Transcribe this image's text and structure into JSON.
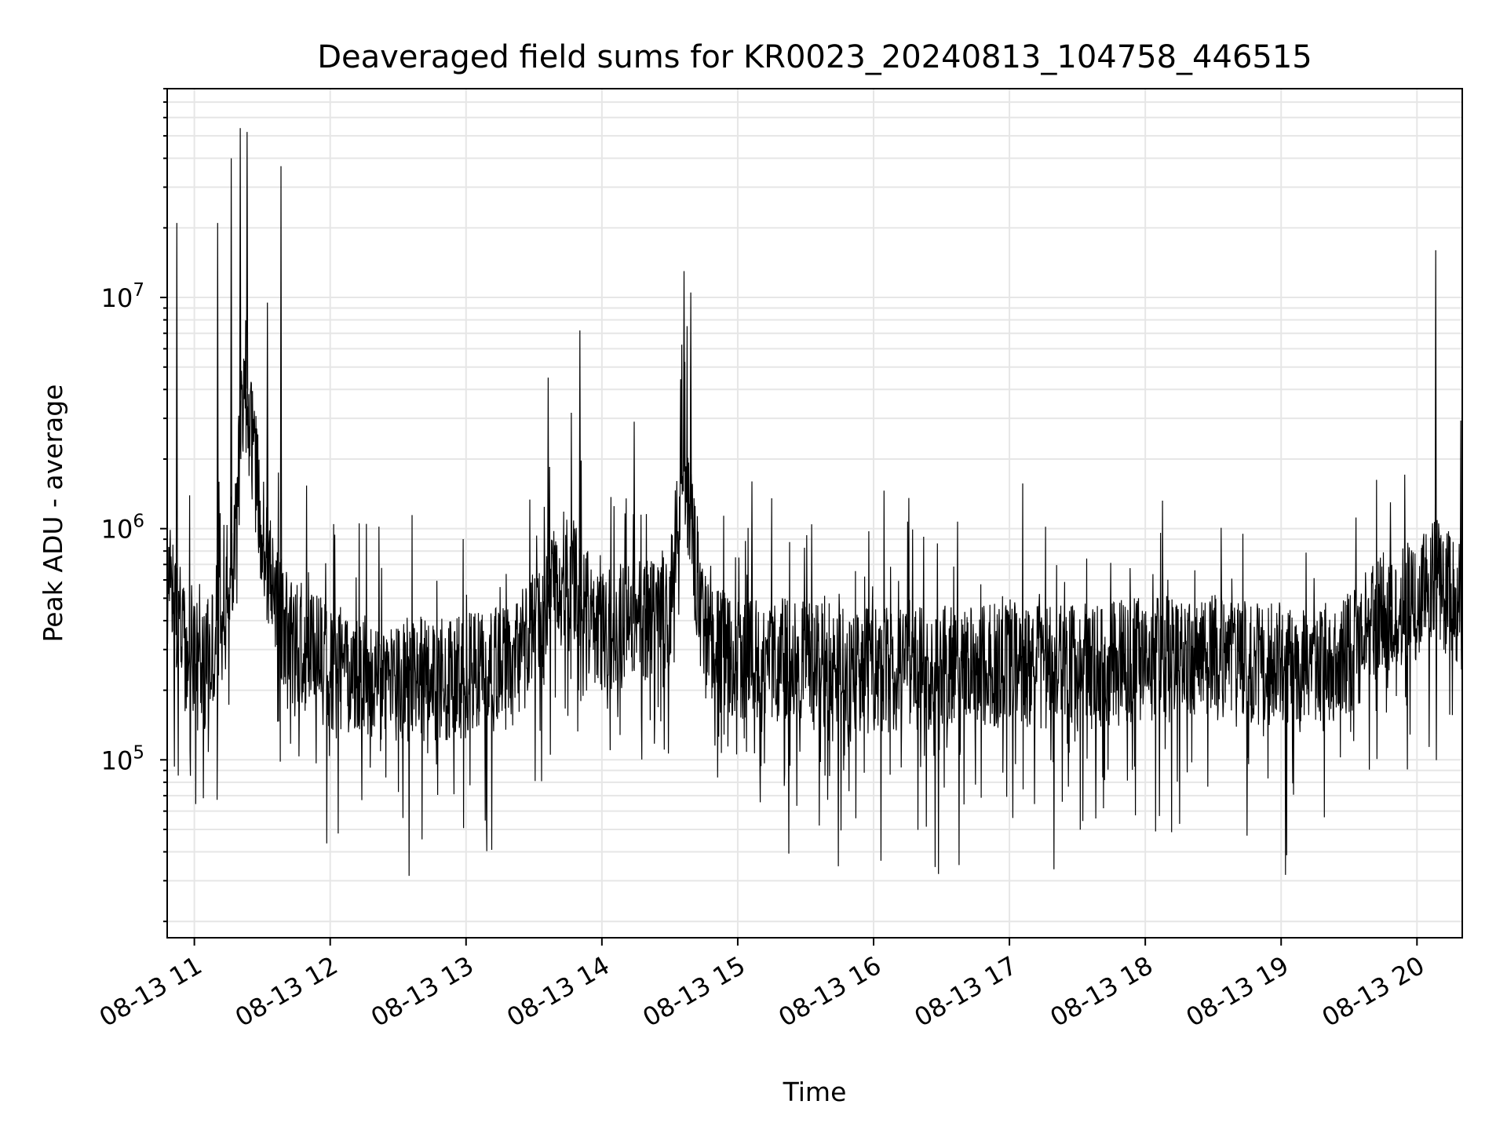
{
  "chart_data": {
    "type": "line",
    "title": "Deaveraged field sums for KR0023_20240813_104758_446515",
    "xlabel": "Time",
    "ylabel": "Peak ADU - average",
    "y_scale": "log",
    "ylim": [
      17000,
      80000000
    ],
    "xlim": [
      "2024-08-13 10:48",
      "2024-08-13 20:20"
    ],
    "x_tick_labels": [
      "08-13 11",
      "08-13 12",
      "08-13 13",
      "08-13 14",
      "08-13 15",
      "08-13 16",
      "08-13 17",
      "08-13 18",
      "08-13 19",
      "08-13 20"
    ],
    "x_tick_times": [
      "2024-08-13 11:00",
      "2024-08-13 12:00",
      "2024-08-13 13:00",
      "2024-08-13 14:00",
      "2024-08-13 15:00",
      "2024-08-13 16:00",
      "2024-08-13 17:00",
      "2024-08-13 18:00",
      "2024-08-13 19:00",
      "2024-08-13 20:00"
    ],
    "y_ticks": [
      {
        "value": 100000,
        "base": "10",
        "exp": "5"
      },
      {
        "value": 1000000,
        "base": "10",
        "exp": "6"
      },
      {
        "value": 10000000,
        "base": "10",
        "exp": "7"
      }
    ],
    "grid": true,
    "line_color": "#000000",
    "grid_color": "#e6e6e6",
    "series": [
      {
        "x": [
          "2024-08-13 10:48",
          "2024-08-13 10:55",
          "2024-08-13 11:00",
          "2024-08-13 11:05",
          "2024-08-13 11:10",
          "2024-08-13 11:15",
          "2024-08-13 11:18",
          "2024-08-13 11:22",
          "2024-08-13 11:30",
          "2024-08-13 11:40",
          "2024-08-13 12:00",
          "2024-08-13 12:30",
          "2024-08-13 13:00",
          "2024-08-13 13:20",
          "2024-08-13 13:30",
          "2024-08-13 13:38",
          "2024-08-13 13:45",
          "2024-08-13 13:52",
          "2024-08-13 14:00",
          "2024-08-13 14:10",
          "2024-08-13 14:20",
          "2024-08-13 14:30",
          "2024-08-13 14:36",
          "2024-08-13 14:40",
          "2024-08-13 14:45",
          "2024-08-13 14:50",
          "2024-08-13 15:00",
          "2024-08-13 15:30",
          "2024-08-13 16:00",
          "2024-08-13 16:30",
          "2024-08-13 17:00",
          "2024-08-13 17:30",
          "2024-08-13 18:00",
          "2024-08-13 18:30",
          "2024-08-13 19:00",
          "2024-08-13 19:30",
          "2024-08-13 19:45",
          "2024-08-13 20:00",
          "2024-08-13 20:08",
          "2024-08-13 20:20"
        ],
        "y": [
          600000,
          350000,
          300000,
          250000,
          400000,
          700000,
          800000,
          5000000,
          900000,
          350000,
          250000,
          220000,
          230000,
          250000,
          350000,
          500000,
          700000,
          450000,
          350000,
          380000,
          400000,
          450000,
          2000000,
          900000,
          350000,
          300000,
          280000,
          260000,
          240000,
          250000,
          260000,
          250000,
          270000,
          280000,
          260000,
          280000,
          450000,
          500000,
          600000,
          450000
        ]
      }
    ],
    "peaks": [
      {
        "x": "2024-08-13 10:52",
        "y": 21000000
      },
      {
        "x": "2024-08-13 11:10",
        "y": 21000000
      },
      {
        "x": "2024-08-13 11:16",
        "y": 40000000
      },
      {
        "x": "2024-08-13 11:20",
        "y": 54000000
      },
      {
        "x": "2024-08-13 11:23",
        "y": 52000000
      },
      {
        "x": "2024-08-13 11:38",
        "y": 37000000
      },
      {
        "x": "2024-08-13 11:32",
        "y": 9500000
      },
      {
        "x": "2024-08-13 13:36",
        "y": 4500000
      },
      {
        "x": "2024-08-13 13:50",
        "y": 7200000
      },
      {
        "x": "2024-08-13 14:14",
        "y": 2900000
      },
      {
        "x": "2024-08-13 14:36",
        "y": 13000000
      },
      {
        "x": "2024-08-13 14:39",
        "y": 10500000
      },
      {
        "x": "2024-08-13 15:06",
        "y": 1600000
      },
      {
        "x": "2024-08-13 19:48",
        "y": 1300000
      },
      {
        "x": "2024-08-13 20:08",
        "y": 16000000
      }
    ]
  }
}
